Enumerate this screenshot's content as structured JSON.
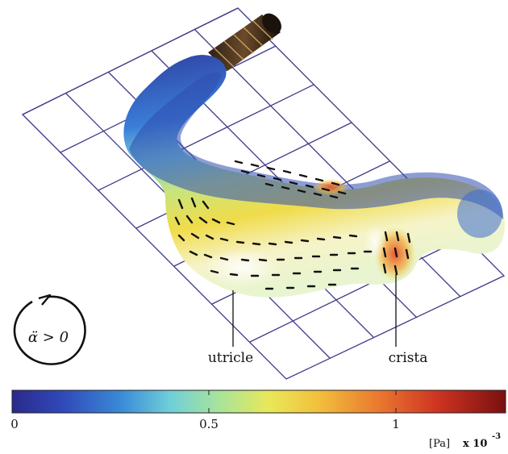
{
  "figure": {
    "rotation_label": "α̈ > 0",
    "labels": {
      "utricle": "utricle",
      "crista": "crista"
    }
  },
  "colorbar": {
    "ticks": [
      "0",
      "0.5",
      "1"
    ],
    "unit": "[Pa]",
    "multiplier": "x 10",
    "exponent": "-3",
    "colors": [
      "#2a2a8c",
      "#2f57c8",
      "#3fa0e0",
      "#7fd8d8",
      "#c8e87a",
      "#f0e04a",
      "#f2a63a",
      "#e04a2a",
      "#b32020",
      "#7a1010"
    ]
  }
}
